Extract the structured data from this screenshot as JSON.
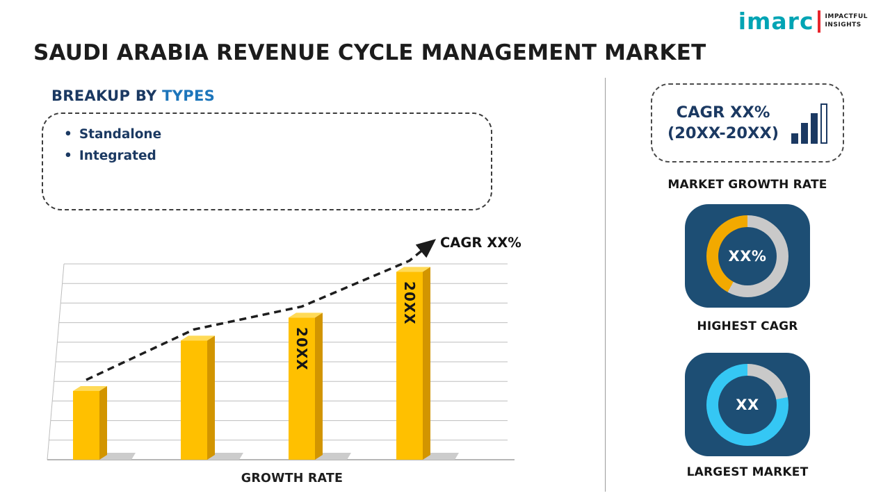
{
  "header": {
    "title": "SAUDI ARABIA REVENUE CYCLE MANAGEMENT MARKET",
    "logo": {
      "brand": "imarc",
      "tagline_line1": "IMPACTFUL",
      "tagline_line2": "INSIGHTS"
    }
  },
  "breakup": {
    "heading_prefix": "BREAKUP BY",
    "heading_highlight": "TYPES",
    "items": [
      "Standalone",
      "Integrated"
    ]
  },
  "sidebar": {
    "cagr_card": {
      "line1": "CAGR XX%",
      "line2": "(20XX-20XX)"
    },
    "market_growth_label": "MARKET GROWTH RATE",
    "highest_cagr_label": "HIGHEST CAGR",
    "largest_market_label": "LARGEST MARKET"
  },
  "colors": {
    "navy_text": "#1b3962",
    "blue_accent": "#1c75bb",
    "bar_gold": "#FFC000",
    "bar_gold_dark": "#D29500",
    "bar_gold_light": "#FFDA57",
    "card_navy": "#1d4e74",
    "donut_gray": "#c9c9c9",
    "donut_gold": "#F2A900",
    "donut_cyan": "#35C7F4",
    "logo_teal": "#00A4B4",
    "logo_red": "#E8262D"
  },
  "chart_data": [
    {
      "type": "bar",
      "categories": [
        "",
        "",
        "20XX",
        "20XX"
      ],
      "values": [
        30,
        52,
        62,
        82
      ],
      "unit": "relative-height-percent (no numeric axis shown)",
      "bar_labels": [
        "",
        "",
        "20XX",
        "20XX"
      ],
      "xlabel": "GROWTH RATE",
      "annotation": "CAGR XX%",
      "trend": "rising dashed arrow above bar tops",
      "grid": "horizontal lines with slight 3D perspective",
      "bar_color": "#FFC000"
    },
    {
      "type": "donut",
      "name": "highest-cagr",
      "label": "XX%",
      "segments": [
        {
          "name": "highlight",
          "color": "#F2A900",
          "pct": 42
        },
        {
          "name": "remainder",
          "color": "#c9c9c9",
          "pct": 58
        }
      ]
    },
    {
      "type": "donut",
      "name": "largest-market",
      "label": "XX",
      "segments": [
        {
          "name": "highlight",
          "color": "#35C7F4",
          "pct": 78
        },
        {
          "name": "remainder",
          "color": "#c9c9c9",
          "pct": 22
        }
      ]
    }
  ]
}
